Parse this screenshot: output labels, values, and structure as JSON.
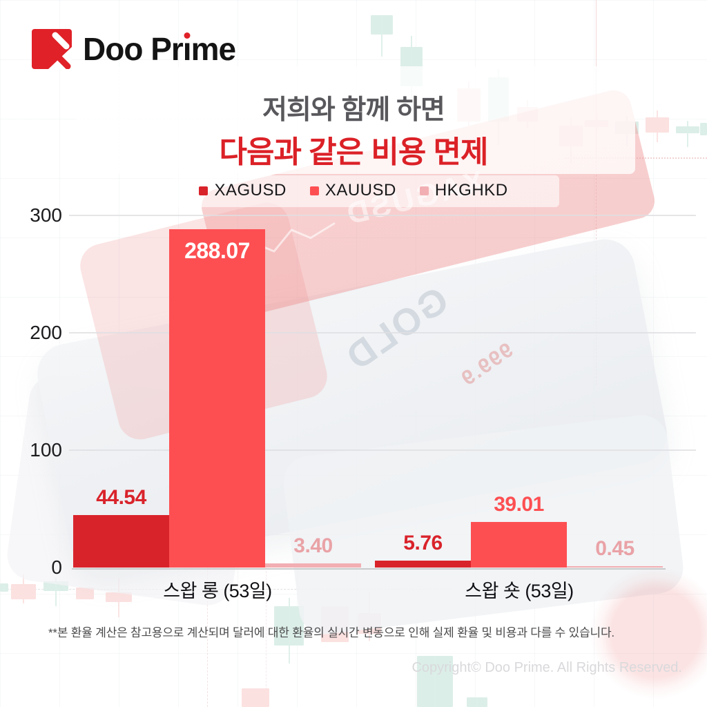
{
  "logo": {
    "text_part1": "Doo Pr",
    "text_i": "ı",
    "text_part2": "me"
  },
  "heading": {
    "line1": "저희와 함께 하면",
    "line2": "다음과 같은 비용 면제",
    "line1_color": "#58585c",
    "line2_color": "#db2127"
  },
  "chart_data": {
    "type": "bar",
    "categories": [
      "스왑 롱 (53일)",
      "스왑 숏 (53일)"
    ],
    "series": [
      {
        "name": "XAGUSD",
        "color": "#d9232b",
        "label_color": "#d9232b",
        "values": [
          44.54,
          5.76
        ],
        "value_labels": [
          "44.54",
          "5.76"
        ]
      },
      {
        "name": "XAUUSD",
        "color": "#fd4f52",
        "label_color": "#fd4f52",
        "values": [
          288.07,
          39.01
        ],
        "value_labels": [
          "288.07",
          "39.01"
        ]
      },
      {
        "name": "HKGHKD",
        "color": "#f2afb3",
        "label_color": "#e9a2a6",
        "values": [
          3.4,
          0.45
        ],
        "value_labels": [
          "3.40",
          "0.45"
        ]
      }
    ],
    "value_label_inside_color": "#ffffff",
    "ylim": [
      0,
      300
    ],
    "yticks": [
      0,
      100,
      200,
      300
    ],
    "ytick_labels": [
      "0",
      "100",
      "200",
      "300"
    ],
    "grid": true,
    "legend_position": "top"
  },
  "background": {
    "ingot_red_text": "XAGUSD",
    "ingot_silver_text": "GOLD",
    "ingot_purity_text": "999.9"
  },
  "footnote": "**본 환율 계산은 참고용으로 계산되며 달러에 대한 환율의 실시간 변동으로 인해 실제 환율 및 비용과 다를 수 있습니다.",
  "copyright": "Copyright© Doo Prime. All Rights Reserved."
}
